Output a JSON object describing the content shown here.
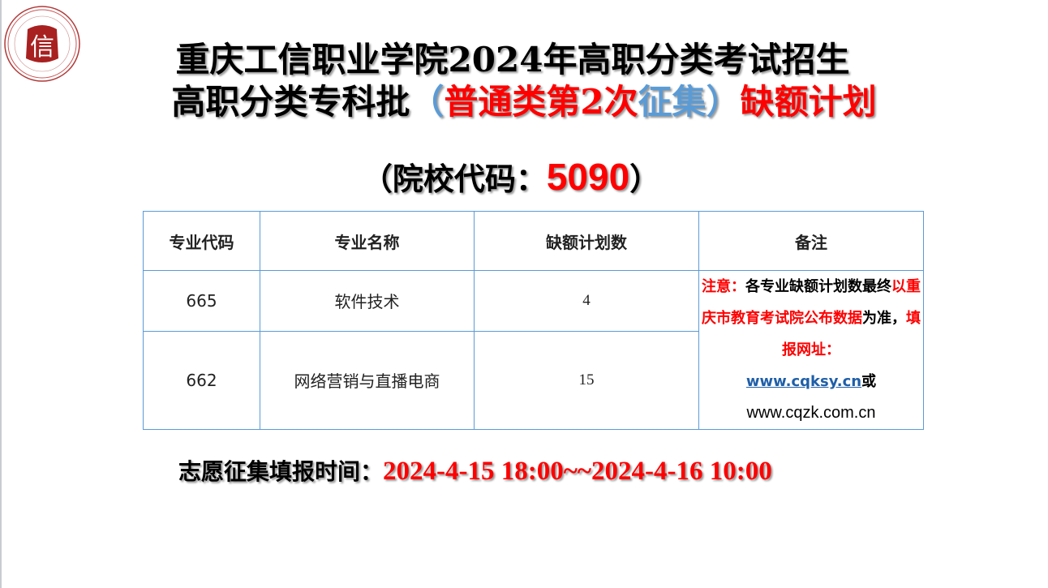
{
  "title": {
    "line1": "重庆工信职业学院2024年高职分类考试招生",
    "line2_black": "高职分类专科批",
    "line2_paren_open": "（",
    "line2_red": "普通类第2次",
    "line2_blue": "征集",
    "line2_paren_close": "）",
    "line2_red2": "缺额计划"
  },
  "school_code": {
    "prefix": "（院校代码：",
    "code": "5090",
    "suffix": "）"
  },
  "colors": {
    "red": "#ff0000",
    "blue": "#5b9bd5",
    "border": "#5b9bd5",
    "link": "#1f5fa8"
  },
  "table": {
    "headers": [
      "专业代码",
      "专业名称",
      "缺额计划数",
      "备注"
    ],
    "rows": [
      {
        "code": "665",
        "name": "软件技术",
        "count": "4"
      },
      {
        "code": "662",
        "name": "网络营销与直播电商",
        "count": "15"
      }
    ],
    "note": {
      "p1_red": "注意：",
      "p2": "各专业缺额计划数最终",
      "p3_red": "以重庆市教育考试院公布数据",
      "p4": "为准，",
      "p5_red": "填报网址：",
      "link1": "www.cqksy.cn",
      "or": "或",
      "link2": "www.cqzk.com.cn"
    }
  },
  "time": {
    "label": "志愿征集填报时间：",
    "value": "2024-4-15 18:00~~2024-4-16 10:00"
  },
  "logo": {
    "text": "信"
  }
}
